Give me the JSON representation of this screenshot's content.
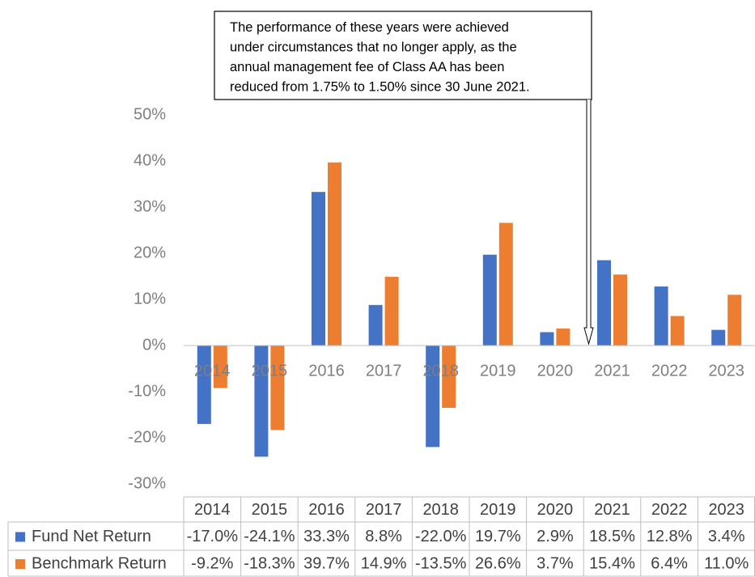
{
  "chart_data": {
    "type": "bar",
    "annotation": [
      "The performance of these years were achieved",
      "under circumstances that no longer apply, as the",
      "annual management fee of Class AA has been",
      "reduced from 1.75% to 1.50% since 30 June 2021."
    ],
    "categories": [
      "2014",
      "2015",
      "2016",
      "2017",
      "2018",
      "2019",
      "2020",
      "2021",
      "2022",
      "2023"
    ],
    "series": [
      {
        "name": "Fund Net Return",
        "color": "#4472c4",
        "values": [
          -17.0,
          -24.1,
          33.3,
          8.8,
          -22.0,
          19.7,
          2.9,
          18.5,
          12.8,
          3.4
        ],
        "value_labels": [
          "-17.0%",
          "-24.1%",
          "33.3%",
          "8.8%",
          "-22.0%",
          "19.7%",
          "2.9%",
          "18.5%",
          "12.8%",
          "3.4%"
        ]
      },
      {
        "name": "Benchmark Return",
        "color": "#ed7d31",
        "values": [
          -9.2,
          -18.3,
          39.7,
          14.9,
          -13.5,
          26.6,
          3.7,
          15.4,
          6.4,
          11.0
        ],
        "value_labels": [
          "-9.2%",
          "-18.3%",
          "39.7%",
          "14.9%",
          "-13.5%",
          "26.6%",
          "3.7%",
          "15.4%",
          "6.4%",
          "11.0%"
        ]
      }
    ],
    "ylim": [
      -30,
      50
    ],
    "yticks": [
      {
        "value": -30,
        "label": "-30%"
      },
      {
        "value": -20,
        "label": "-20%"
      },
      {
        "value": -10,
        "label": "-10%"
      },
      {
        "value": 0,
        "label": "0%"
      },
      {
        "value": 10,
        "label": "10%"
      },
      {
        "value": 20,
        "label": "20%"
      },
      {
        "value": 30,
        "label": "30%"
      },
      {
        "value": 40,
        "label": "40%"
      },
      {
        "value": 50,
        "label": "50%"
      }
    ],
    "grid": false
  }
}
